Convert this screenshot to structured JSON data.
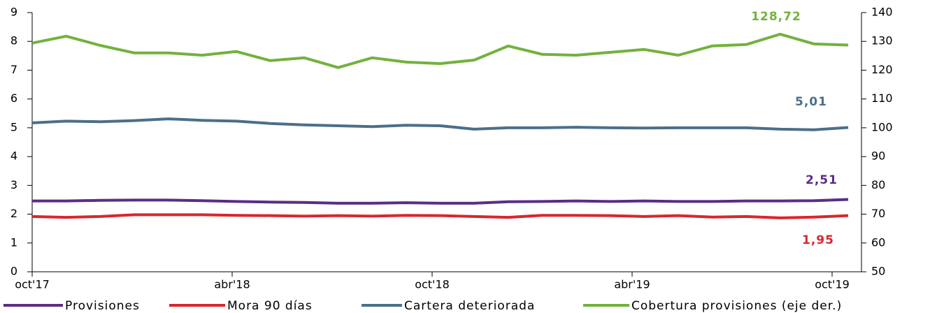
{
  "chart_data": {
    "type": "line",
    "categories": [
      "oct'17",
      null,
      null,
      null,
      null,
      null,
      "abr'18",
      null,
      null,
      null,
      null,
      null,
      "oct'18",
      null,
      null,
      null,
      null,
      null,
      "abr'19",
      null,
      null,
      null,
      null,
      null,
      "oct'19"
    ],
    "ylim": [
      0,
      9
    ],
    "yticks": [
      0,
      1,
      2,
      3,
      4,
      5,
      6,
      7,
      8,
      9
    ],
    "y2lim": [
      50,
      140
    ],
    "y2ticks": [
      50,
      60,
      70,
      80,
      90,
      100,
      110,
      120,
      130,
      140
    ],
    "series": [
      {
        "name": "Provisiones",
        "color": "#5b2d86",
        "values": [
          2.46,
          2.46,
          2.48,
          2.49,
          2.49,
          2.47,
          2.44,
          2.42,
          2.41,
          2.38,
          2.38,
          2.4,
          2.38,
          2.38,
          2.43,
          2.44,
          2.46,
          2.44,
          2.46,
          2.44,
          2.44,
          2.46,
          2.46,
          2.47,
          2.51
        ],
        "value_labels": [
          null,
          null,
          null,
          null,
          null,
          null,
          null,
          null,
          null,
          null,
          null,
          null,
          null,
          null,
          null,
          null,
          null,
          null,
          null,
          null,
          null,
          null,
          null,
          null,
          "2,51"
        ]
      },
      {
        "name": "Mora 90 días",
        "color": "#d9262e",
        "values": [
          1.92,
          1.89,
          1.92,
          1.98,
          1.98,
          1.98,
          1.96,
          1.95,
          1.93,
          1.95,
          1.93,
          1.96,
          1.95,
          1.92,
          1.89,
          1.96,
          1.96,
          1.95,
          1.92,
          1.95,
          1.9,
          1.92,
          1.87,
          1.9,
          1.95
        ],
        "value_labels": [
          null,
          null,
          null,
          null,
          null,
          null,
          null,
          null,
          null,
          null,
          null,
          null,
          null,
          null,
          null,
          null,
          null,
          null,
          null,
          null,
          null,
          null,
          null,
          null,
          "1,95"
        ]
      },
      {
        "name": "Cartera deteriorada",
        "color": "#4a6f8a",
        "values": [
          5.17,
          5.23,
          5.21,
          5.25,
          5.31,
          5.26,
          5.23,
          5.15,
          5.1,
          5.07,
          5.04,
          5.09,
          5.07,
          4.95,
          5.0,
          5.0,
          5.02,
          5.0,
          4.99,
          5.0,
          5.0,
          5.0,
          4.95,
          4.93,
          5.01
        ],
        "value_labels": [
          null,
          null,
          null,
          null,
          null,
          null,
          null,
          null,
          null,
          null,
          null,
          null,
          null,
          null,
          null,
          null,
          null,
          null,
          null,
          null,
          null,
          null,
          null,
          null,
          "5,01"
        ]
      },
      {
        "name": "Cobertura provisiones (eje der.)",
        "color": "#72b23d",
        "axis": "y2",
        "values": [
          129.4,
          131.8,
          128.6,
          126.0,
          126.0,
          125.2,
          126.5,
          123.3,
          124.3,
          120.9,
          124.3,
          122.8,
          122.3,
          123.5,
          128.4,
          125.5,
          125.2,
          126.2,
          127.2,
          125.2,
          128.4,
          128.9,
          132.5,
          129.1,
          128.72
        ],
        "value_labels": [
          null,
          null,
          null,
          null,
          null,
          null,
          null,
          null,
          null,
          null,
          null,
          null,
          null,
          null,
          null,
          null,
          null,
          null,
          null,
          null,
          null,
          null,
          null,
          null,
          "128,72"
        ]
      }
    ]
  }
}
